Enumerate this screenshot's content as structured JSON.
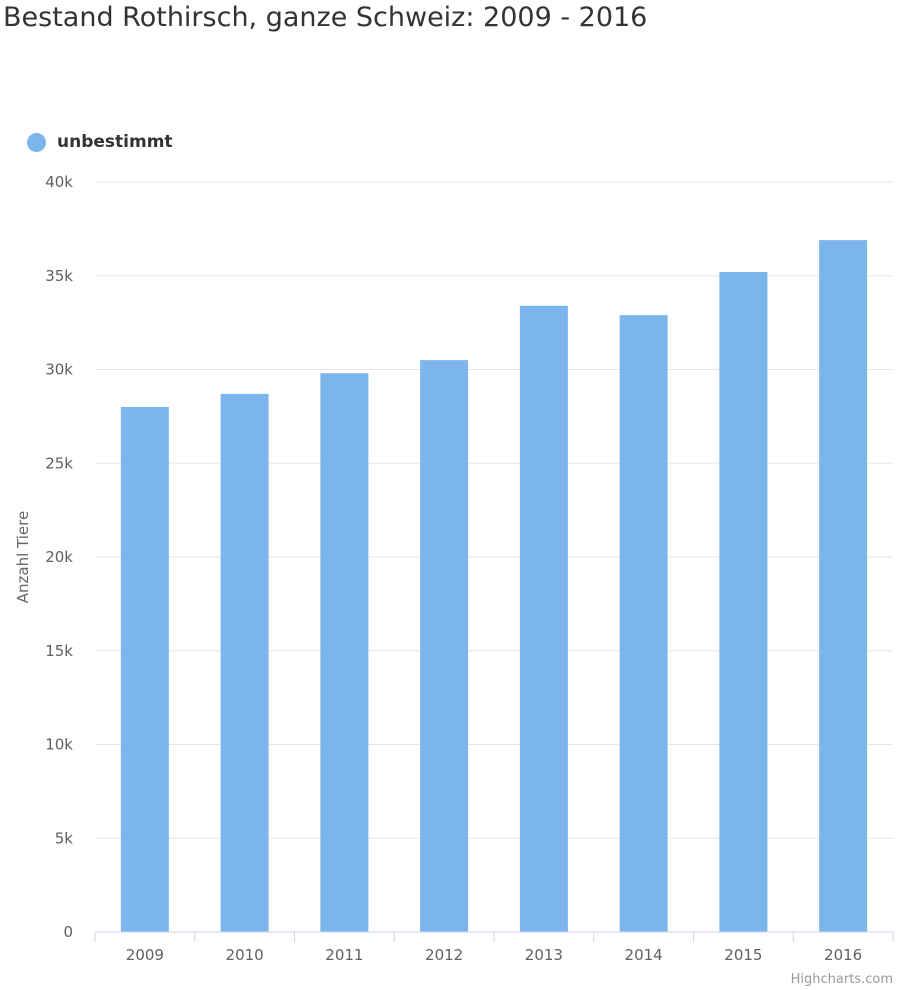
{
  "chart_data": {
    "type": "bar",
    "title": "Bestand Rothirsch, ganze Schweiz: 2009 - 2016",
    "ylabel": "Anzahl Tiere",
    "xlabel": "",
    "categories": [
      "2009",
      "2010",
      "2011",
      "2012",
      "2013",
      "2014",
      "2015",
      "2016"
    ],
    "series": [
      {
        "name": "unbestimmt",
        "color": "#7cb5ec",
        "values": [
          28000,
          28700,
          29800,
          30500,
          33400,
          32900,
          35200,
          36900
        ]
      }
    ],
    "ylim": [
      0,
      40000
    ],
    "yticks": [
      0,
      5000,
      10000,
      15000,
      20000,
      25000,
      30000,
      35000,
      40000
    ],
    "ytick_labels": [
      "0",
      "5k",
      "10k",
      "15k",
      "20k",
      "25k",
      "30k",
      "35k",
      "40k"
    ],
    "grid": true,
    "legend_position": "top-left",
    "credits": "Highcharts.com"
  }
}
